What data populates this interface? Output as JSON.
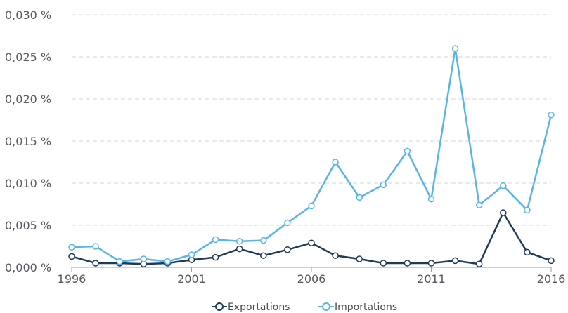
{
  "chart_data": {
    "type": "line",
    "x": [
      1996,
      1997,
      1998,
      1999,
      2000,
      2001,
      2002,
      2003,
      2004,
      2005,
      2006,
      2007,
      2008,
      2009,
      2010,
      2011,
      2012,
      2013,
      2014,
      2015,
      2016
    ],
    "series": [
      {
        "name": "Exportations",
        "color": "#1f3a57",
        "values": [
          0.0013,
          0.0005,
          0.0005,
          0.0004,
          0.0005,
          0.0009,
          0.0012,
          0.0022,
          0.0014,
          0.0021,
          0.0029,
          0.0014,
          0.001,
          0.0005,
          0.0005,
          0.0005,
          0.0008,
          0.0004,
          0.0065,
          0.0018,
          0.0008
        ]
      },
      {
        "name": "Importations",
        "color": "#5ab4e5",
        "values": [
          0.0024,
          0.0025,
          0.0007,
          0.001,
          0.0007,
          0.0015,
          0.0033,
          0.0031,
          0.0032,
          0.0053,
          0.0073,
          0.0125,
          0.0083,
          0.0098,
          0.0138,
          0.0081,
          0.026,
          0.0074,
          0.0097,
          0.0068,
          0.0181
        ]
      }
    ],
    "x_ticks": [
      "1996",
      "2001",
      "2006",
      "2011",
      "2016"
    ],
    "y_ticks": [
      "0,000 %",
      "0,005 %",
      "0,010 %",
      "0,015 %",
      "0,020 %",
      "0,025 %",
      "0,030 %"
    ],
    "xlim": [
      1996,
      2016
    ],
    "ylim": [
      0,
      0.03
    ],
    "grid": "horizontal dashed",
    "legend": "bottom-center",
    "title": "",
    "xlabel": "",
    "ylabel": ""
  }
}
